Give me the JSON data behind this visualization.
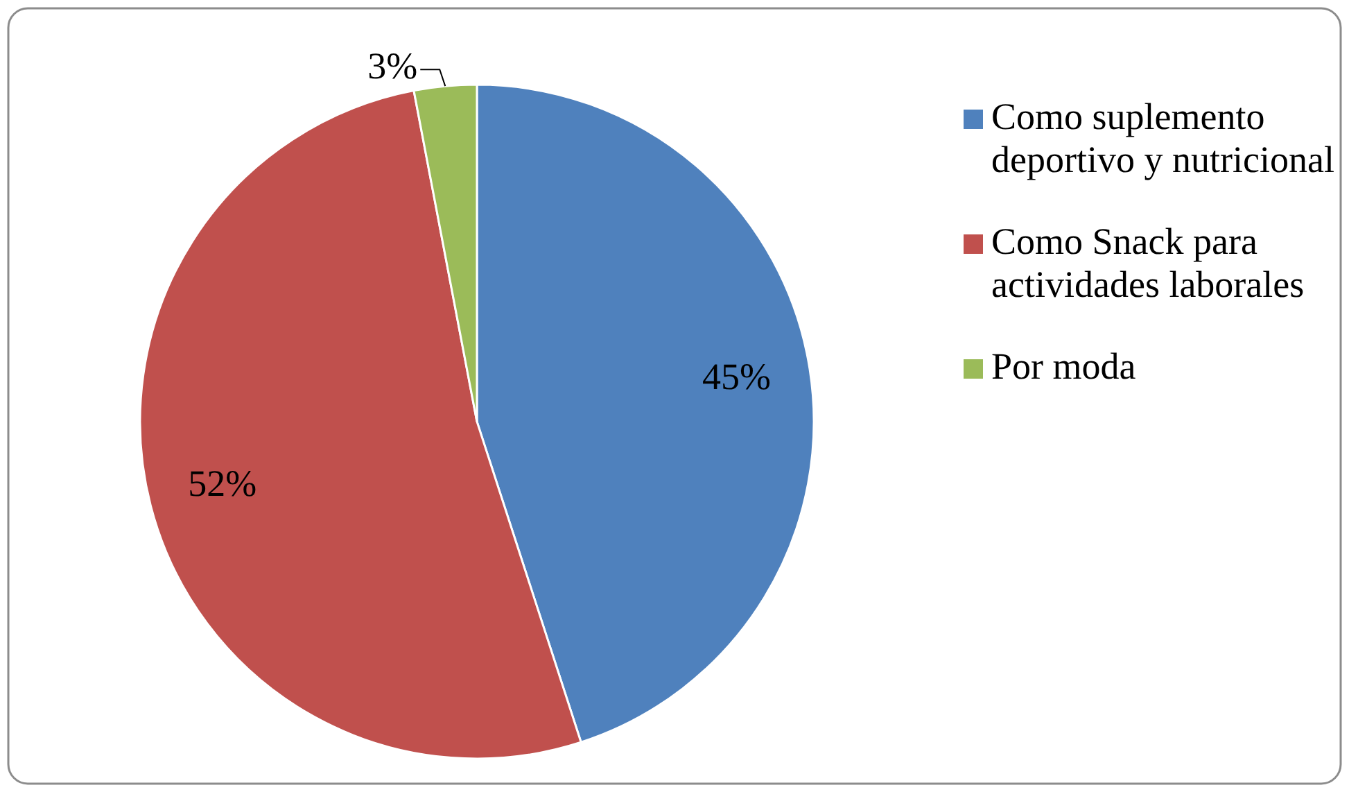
{
  "chart_data": {
    "type": "pie",
    "categories": [
      "Como suplemento deportivo y nutricional",
      "Como Snack para actividades laborales",
      "Por moda"
    ],
    "values": [
      45,
      52,
      3
    ],
    "colors": [
      "#4f81bd",
      "#c0504d",
      "#9bbb59"
    ],
    "value_labels": [
      "45%",
      "52%",
      "3%"
    ],
    "legend": "right"
  }
}
